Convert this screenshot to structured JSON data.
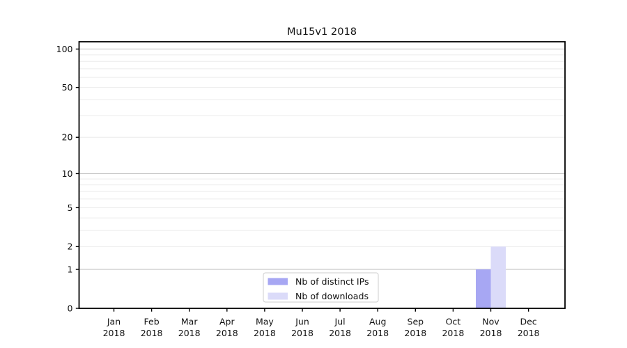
{
  "chart_data": {
    "type": "bar",
    "title": "Mu15v1 2018",
    "categories": [
      "Jan",
      "Feb",
      "Mar",
      "Apr",
      "May",
      "Jun",
      "Jul",
      "Aug",
      "Sep",
      "Oct",
      "Nov",
      "Dec"
    ],
    "x_tick_sublabel": "2018",
    "series": [
      {
        "name": "Nb of distinct IPs",
        "color": "#a7a7f3",
        "values": [
          0,
          0,
          0,
          0,
          0,
          0,
          0,
          0,
          0,
          0,
          1,
          0
        ]
      },
      {
        "name": "Nb of downloads",
        "color": "#dbdbf9",
        "values": [
          0,
          0,
          0,
          0,
          0,
          0,
          0,
          0,
          0,
          0,
          2,
          0
        ]
      }
    ],
    "yscale": "log1p",
    "ylim": [
      0,
      114
    ],
    "y_ticks": [
      0,
      1,
      2,
      5,
      10,
      20,
      50,
      100
    ],
    "y_major_gridlines": [
      1,
      10,
      100
    ],
    "y_minor_gridlines": [
      2,
      3,
      4,
      5,
      6,
      7,
      8,
      9,
      20,
      30,
      40,
      50,
      60,
      70,
      80,
      90
    ],
    "grid": true,
    "legend_position": "lower center",
    "xlabel": "",
    "ylabel": ""
  },
  "colors": {
    "background": "#ffffff",
    "bar_distinct_ips": "#a7a7f3",
    "bar_downloads": "#dbdbf9",
    "grid_major": "#c6c6c6",
    "grid_minor": "#ececec",
    "spine": "#000000",
    "tick": "#000000",
    "text": "#111111",
    "legend_border": "#cccccc",
    "legend_bg": "#ffffff"
  }
}
